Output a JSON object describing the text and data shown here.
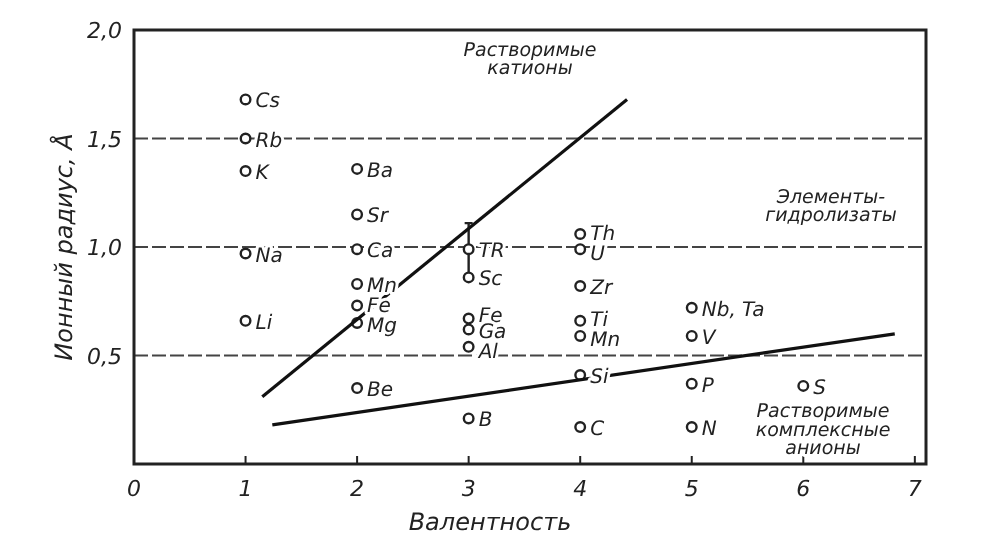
{
  "chart_data": {
    "type": "scatter",
    "xlabel": "Валентность",
    "ylabel": "Ионный радиус, Å",
    "xlim": [
      0,
      7.1
    ],
    "ylim": [
      0,
      2
    ],
    "xticks": [
      0,
      1,
      2,
      3,
      4,
      5,
      6,
      7
    ],
    "yticks": [
      {
        "value": 0,
        "label": null
      },
      {
        "value": 0.5,
        "label": "0,5"
      },
      {
        "value": 1,
        "label": "1,0"
      },
      {
        "value": 1.5,
        "label": "1,5"
      },
      {
        "value": 2,
        "label": "2,0"
      }
    ],
    "grid": "y",
    "marker": "circle",
    "annotations": [
      "Растворимые катионы",
      "Элементы-гидролизаты",
      "Растворимые комплексные анионы"
    ],
    "series": [
      {
        "name": "Cs",
        "color": "#222222",
        "x": [
          1
        ],
        "values": [
          1.68
        ]
      },
      {
        "name": "Rb",
        "color": "#222222",
        "x": [
          1
        ],
        "values": [
          1.5
        ]
      },
      {
        "name": "K",
        "color": "#222222",
        "x": [
          1
        ],
        "values": [
          1.35
        ]
      },
      {
        "name": "Na",
        "color": "#222222",
        "x": [
          1
        ],
        "values": [
          0.97
        ]
      },
      {
        "name": "Li",
        "color": "#222222",
        "x": [
          1
        ],
        "values": [
          0.66
        ]
      },
      {
        "name": "Ba",
        "color": "#222222",
        "x": [
          2
        ],
        "values": [
          1.36
        ]
      },
      {
        "name": "Sr",
        "color": "#222222",
        "x": [
          2
        ],
        "values": [
          1.15
        ]
      },
      {
        "name": "Ca",
        "color": "#222222",
        "x": [
          2
        ],
        "values": [
          0.99
        ]
      },
      {
        "name": "Mn",
        "color": "#222222",
        "x": [
          2
        ],
        "values": [
          0.83
        ]
      },
      {
        "name": "Fe",
        "color": "#222222",
        "x": [
          2
        ],
        "values": [
          0.73
        ]
      },
      {
        "name": "Mg",
        "color": "#222222",
        "x": [
          2
        ],
        "values": [
          0.65
        ]
      },
      {
        "name": "Be",
        "color": "#222222",
        "x": [
          2
        ],
        "values": [
          0.35
        ]
      },
      {
        "name": "TR",
        "color": "#222222",
        "x": [
          3
        ],
        "values": [
          0.99
        ],
        "errors": [
          [
            0.87,
            1.11
          ]
        ]
      },
      {
        "name": "Sc",
        "color": "#222222",
        "x": [
          3
        ],
        "values": [
          0.86
        ]
      },
      {
        "name": "Fe",
        "color": "#222222",
        "x": [
          3
        ],
        "values": [
          0.67
        ]
      },
      {
        "name": "Ga",
        "color": "#222222",
        "x": [
          3
        ],
        "values": [
          0.62
        ]
      },
      {
        "name": "Al",
        "color": "#222222",
        "x": [
          3
        ],
        "values": [
          0.54
        ]
      },
      {
        "name": "B",
        "color": "#222222",
        "x": [
          3
        ],
        "values": [
          0.21
        ]
      },
      {
        "name": "Th",
        "color": "#222222",
        "x": [
          4
        ],
        "values": [
          1.06
        ]
      },
      {
        "name": "U",
        "color": "#222222",
        "x": [
          4
        ],
        "values": [
          0.99
        ]
      },
      {
        "name": "Zr",
        "color": "#222222",
        "x": [
          4
        ],
        "values": [
          0.82
        ]
      },
      {
        "name": "Ti",
        "color": "#222222",
        "x": [
          4
        ],
        "values": [
          0.66
        ]
      },
      {
        "name": "Mn",
        "color": "#222222",
        "x": [
          4
        ],
        "values": [
          0.59
        ]
      },
      {
        "name": "Si",
        "color": "#222222",
        "x": [
          4
        ],
        "values": [
          0.41
        ]
      },
      {
        "name": "C",
        "color": "#222222",
        "x": [
          4
        ],
        "values": [
          0.17
        ]
      },
      {
        "name": "Nb, Ta",
        "color": "#222222",
        "x": [
          5
        ],
        "values": [
          0.72
        ]
      },
      {
        "name": "V",
        "color": "#222222",
        "x": [
          5
        ],
        "values": [
          0.59
        ]
      },
      {
        "name": "P",
        "color": "#222222",
        "x": [
          5
        ],
        "values": [
          0.37
        ]
      },
      {
        "name": "N",
        "color": "#222222",
        "x": [
          5
        ],
        "values": [
          0.17
        ]
      },
      {
        "name": "S",
        "color": "#222222",
        "x": [
          6
        ],
        "values": [
          0.36
        ]
      },
      {
        "type": "line",
        "marker": "none",
        "color": "#111111",
        "x": [
          1.15,
          4.42
        ],
        "values": [
          0.31,
          1.68
        ]
      },
      {
        "type": "line",
        "marker": "none",
        "color": "#111111",
        "x": [
          1.24,
          6.82
        ],
        "values": [
          0.18,
          0.6
        ]
      }
    ]
  }
}
